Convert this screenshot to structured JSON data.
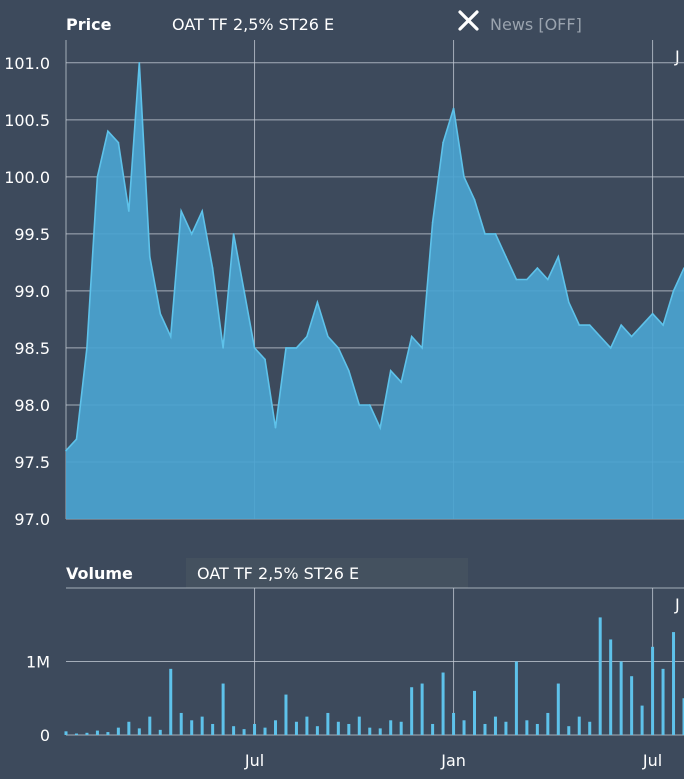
{
  "price_panel": {
    "title": "Price",
    "instrument": "OAT TF 2,5% ST26 E",
    "news_label": "News [OFF]",
    "close_icon": "close-icon",
    "corner_label": "J"
  },
  "volume_panel": {
    "title": "Volume",
    "instrument": "OAT TF 2,5% ST26 E",
    "corner_label": "J"
  },
  "colors": {
    "background": "#3d4a5c",
    "series_line": "#5ec2ea",
    "series_fill": "#4aa3d0",
    "grid": "#c7ced8"
  },
  "chart_data": [
    {
      "type": "area",
      "title": "Price",
      "ylim": [
        97.0,
        101.2
      ],
      "y_ticks": [
        "97.0",
        "97.5",
        "98.0",
        "98.5",
        "99.0",
        "99.5",
        "100.0",
        "100.5",
        "101.0"
      ],
      "x_ticks": [
        "Jul",
        "Jan",
        "Jul"
      ],
      "x_tick_index": [
        18,
        37,
        56
      ],
      "grid": true,
      "series": [
        {
          "values": [
            97.6,
            97.7,
            98.5,
            100.0,
            100.4,
            100.3,
            99.7,
            101.0,
            99.3,
            98.8,
            98.6,
            99.7,
            99.5,
            99.7,
            99.2,
            98.5,
            99.5,
            99.0,
            98.5,
            98.4,
            97.8,
            98.5,
            98.5,
            98.6,
            98.9,
            98.6,
            98.5,
            98.3,
            98.0,
            98.0,
            97.8,
            98.3,
            98.2,
            98.6,
            98.5,
            99.6,
            100.3,
            100.6,
            100.0,
            99.8,
            99.5,
            99.5,
            99.3,
            99.1,
            99.1,
            99.2,
            99.1,
            99.3,
            98.9,
            98.7,
            98.7,
            98.6,
            98.5,
            98.7,
            98.6,
            98.7,
            98.8,
            98.7,
            99.0,
            99.2
          ]
        }
      ]
    },
    {
      "type": "bar",
      "title": "Volume",
      "ylim": [
        0,
        2000000
      ],
      "y_ticks": [
        "0",
        "1M"
      ],
      "y_tick_values": [
        0,
        1000000
      ],
      "x_ticks": [
        "Jul",
        "Jan",
        "Jul"
      ],
      "x_tick_index": [
        18,
        37,
        56
      ],
      "grid": true,
      "series": [
        {
          "values": [
            50000,
            20000,
            30000,
            60000,
            40000,
            100000,
            180000,
            90000,
            250000,
            70000,
            900000,
            300000,
            200000,
            250000,
            150000,
            700000,
            120000,
            80000,
            150000,
            100000,
            200000,
            550000,
            180000,
            250000,
            120000,
            300000,
            180000,
            150000,
            250000,
            100000,
            90000,
            200000,
            180000,
            650000,
            700000,
            150000,
            850000,
            300000,
            200000,
            600000,
            150000,
            250000,
            180000,
            1000000,
            200000,
            150000,
            300000,
            700000,
            120000,
            250000,
            180000,
            1600000,
            1300000,
            1000000,
            800000,
            400000,
            1200000,
            900000,
            1400000,
            500000
          ]
        }
      ]
    }
  ]
}
